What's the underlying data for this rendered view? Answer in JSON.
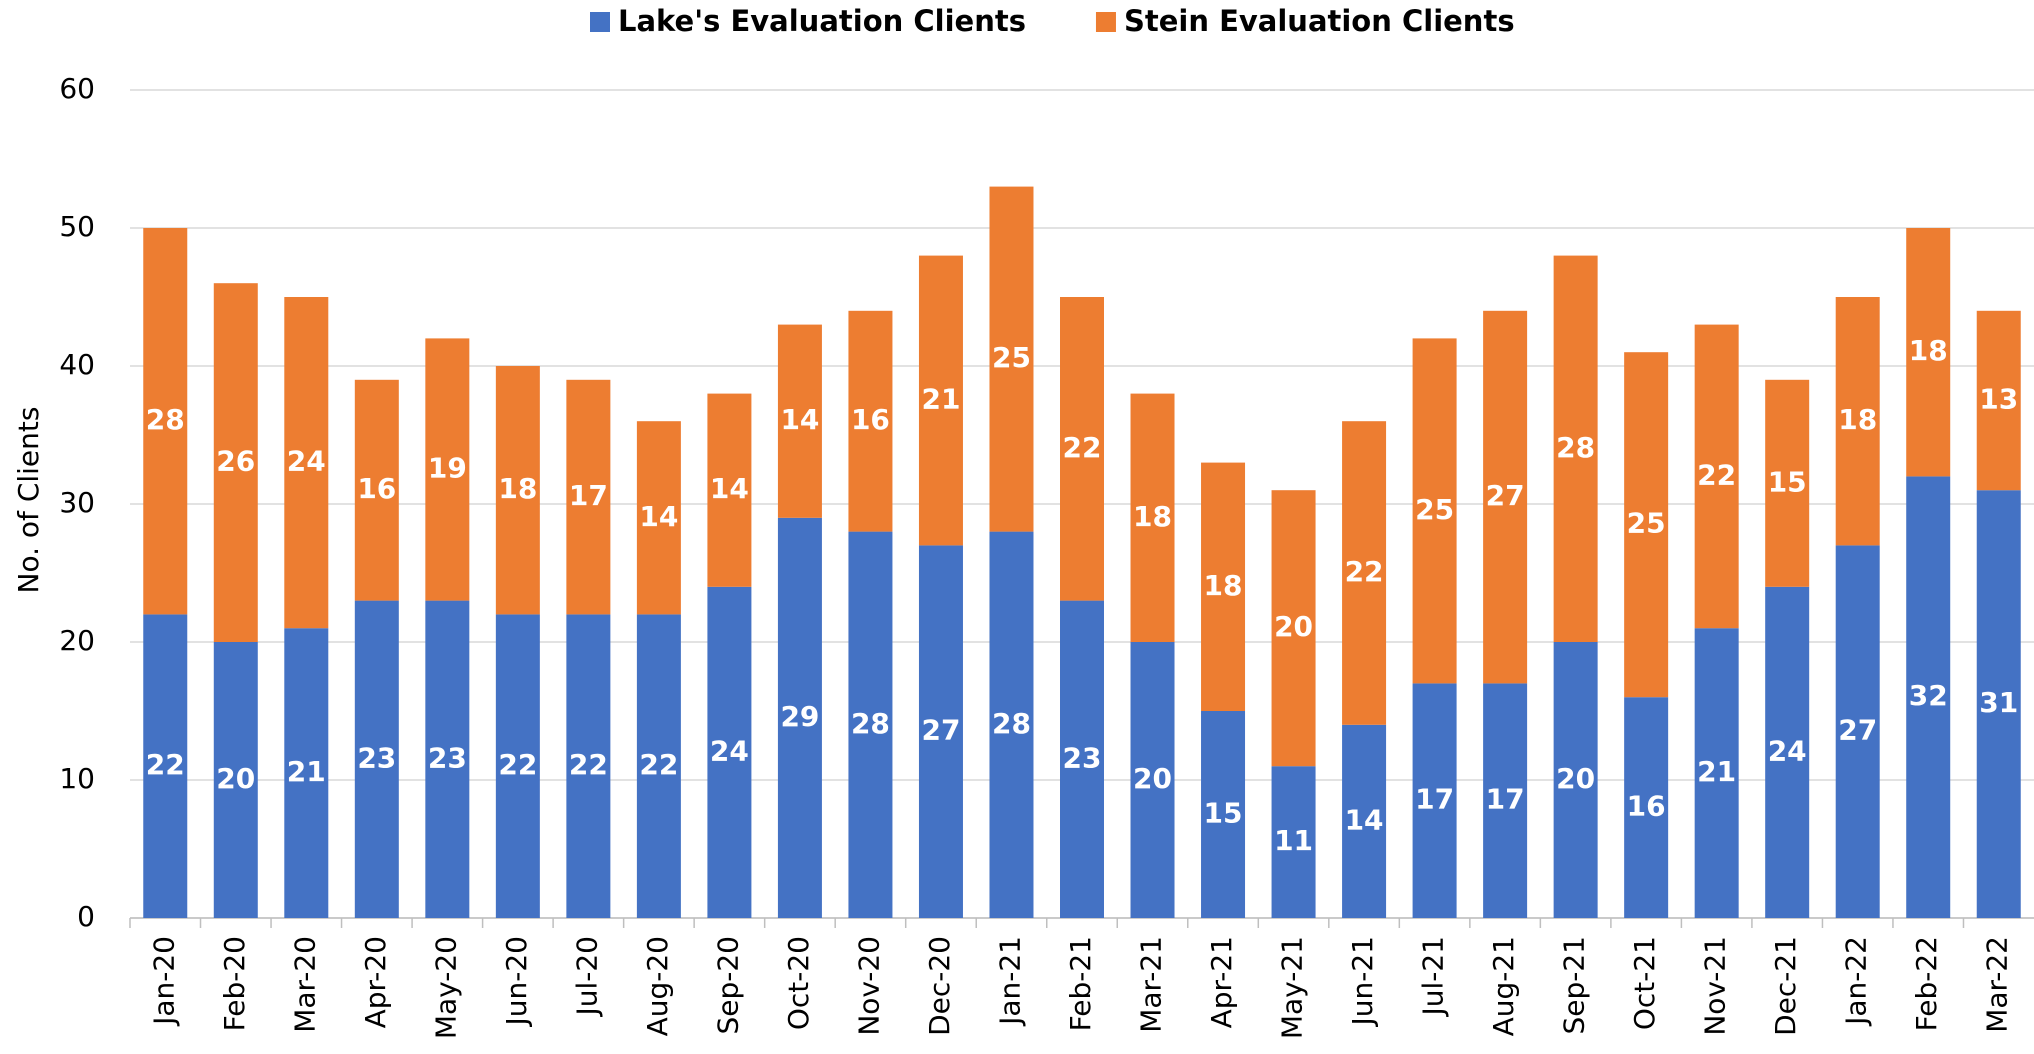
{
  "chart_data": {
    "type": "stacked_bar",
    "y_label": "No. of Clients",
    "categories": [
      "Jan-20",
      "Feb-20",
      "Mar-20",
      "Apr-20",
      "May-20",
      "Jun-20",
      "Jul-20",
      "Aug-20",
      "Sep-20",
      "Oct-20",
      "Nov-20",
      "Dec-20",
      "Jan-21",
      "Feb-21",
      "Mar-21",
      "Apr-21",
      "May-21",
      "Jun-21",
      "Jul-21",
      "Aug-21",
      "Sep-21",
      "Oct-21",
      "Nov-21",
      "Dec-21",
      "Jan-22",
      "Feb-22",
      "Mar-22"
    ],
    "series": [
      {
        "name": "Lake's Evaluation Clients",
        "color": "#4472c4",
        "values": [
          22,
          20,
          21,
          23,
          23,
          22,
          22,
          22,
          24,
          29,
          28,
          27,
          28,
          23,
          20,
          15,
          11,
          14,
          17,
          17,
          20,
          16,
          21,
          24,
          27,
          32,
          31
        ]
      },
      {
        "name": "Stein Evaluation Clients",
        "color": "#ed7d31",
        "values": [
          28,
          26,
          24,
          16,
          19,
          18,
          17,
          14,
          14,
          14,
          16,
          21,
          25,
          22,
          18,
          18,
          20,
          22,
          25,
          27,
          28,
          25,
          22,
          15,
          18,
          18,
          13
        ]
      }
    ],
    "ylim": [
      0,
      60
    ],
    "yticks": [
      0,
      10,
      20,
      30,
      40,
      50,
      60
    ],
    "grid": true,
    "legend": "top"
  }
}
